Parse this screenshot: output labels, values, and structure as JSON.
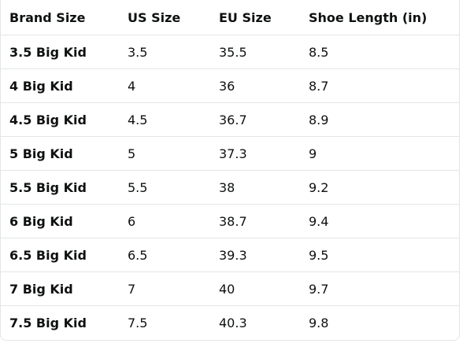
{
  "table": {
    "columns": [
      "Brand Size",
      "US Size",
      "EU Size",
      "Shoe Length (in)"
    ],
    "rows": [
      [
        "3.5 Big Kid",
        "3.5",
        "35.5",
        "8.5"
      ],
      [
        "4 Big Kid",
        "4",
        "36",
        "8.7"
      ],
      [
        "4.5 Big Kid",
        "4.5",
        "36.7",
        "8.9"
      ],
      [
        "5 Big Kid",
        "5",
        "37.3",
        "9"
      ],
      [
        "5.5 Big Kid",
        "5.5",
        "38",
        "9.2"
      ],
      [
        "6 Big Kid",
        "6",
        "38.7",
        "9.4"
      ],
      [
        "6.5 Big Kid",
        "6.5",
        "39.3",
        "9.5"
      ],
      [
        "7 Big Kid",
        "7",
        "40",
        "9.7"
      ],
      [
        "7.5 Big Kid",
        "7.5",
        "40.3",
        "9.8"
      ]
    ]
  }
}
